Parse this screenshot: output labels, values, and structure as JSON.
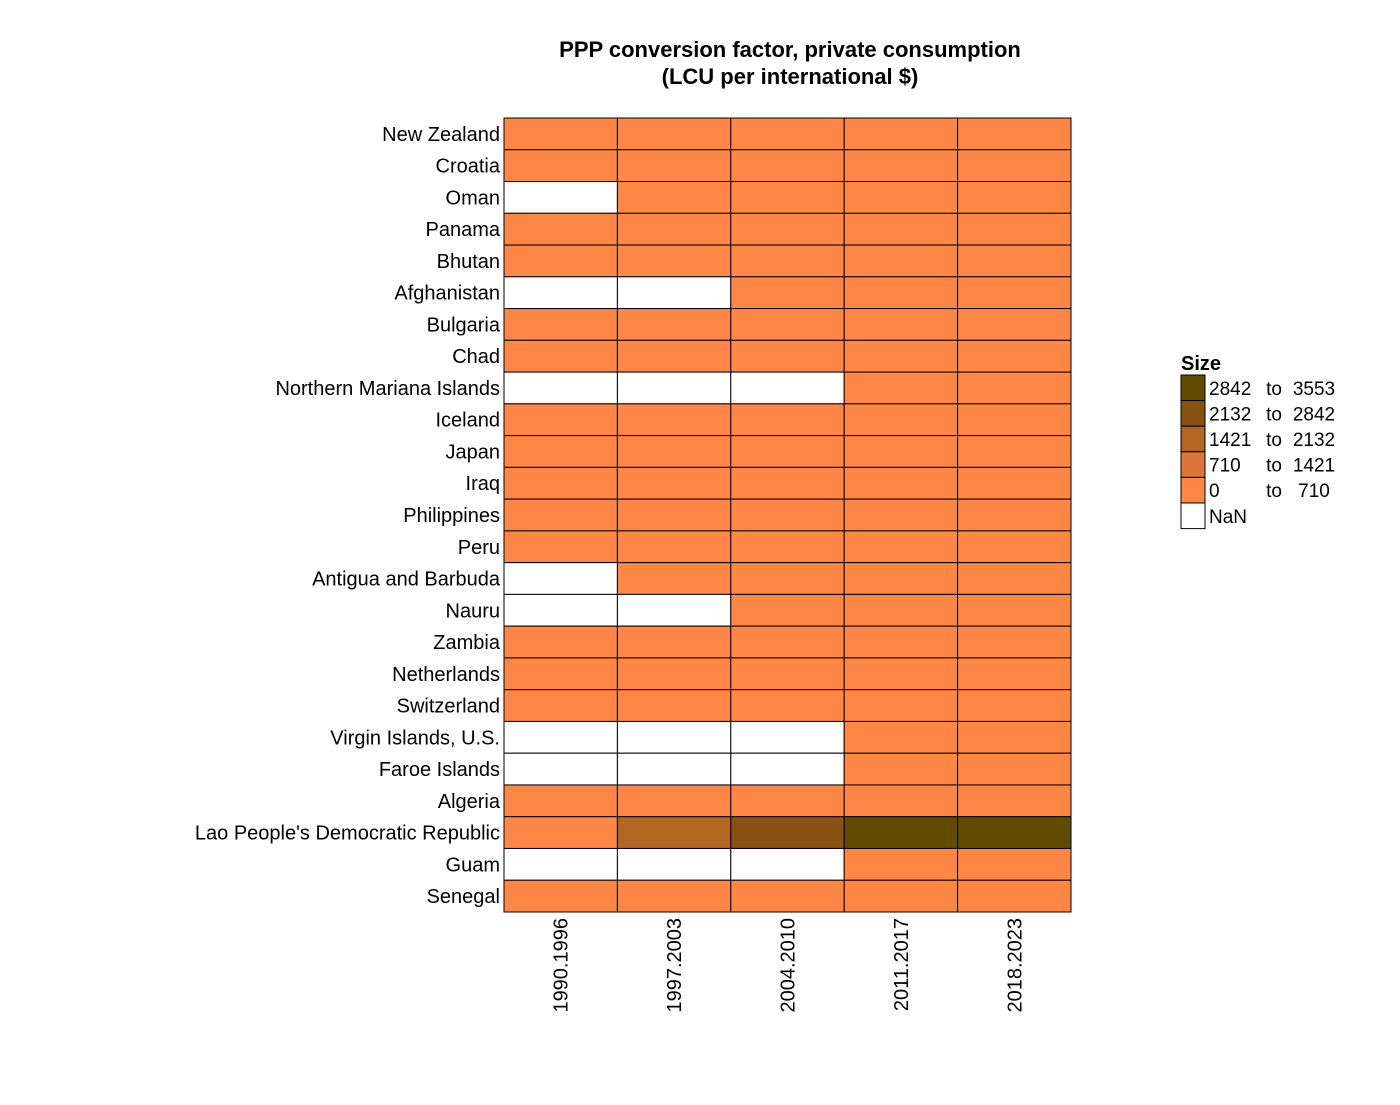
{
  "chart_data": {
    "type": "heatmap",
    "title_line1": "PPP conversion factor, private consumption",
    "title_line2": "(LCU per international $)",
    "xlabel": "",
    "ylabel": "",
    "columns": [
      "1990.1996",
      "1997.2003",
      "2004.2010",
      "2011.2017",
      "2018.2023"
    ],
    "rows": [
      "New Zealand",
      "Croatia",
      "Oman",
      "Panama",
      "Bhutan",
      "Afghanistan",
      "Bulgaria",
      "Chad",
      "Northern Mariana Islands",
      "Iceland",
      "Japan",
      "Iraq",
      "Philippines",
      "Peru",
      "Antigua and Barbuda",
      "Nauru",
      "Zambia",
      "Netherlands",
      "Switzerland",
      "Virgin Islands, U.S.",
      "Faroe Islands",
      "Algeria",
      "Lao People's Democratic Republic",
      "Guam",
      "Senegal"
    ],
    "bins": [
      {
        "label_from": "2842",
        "label_to": "3553",
        "color": "#614B00"
      },
      {
        "label_from": "2132",
        "label_to": "2842",
        "color": "#8A5212"
      },
      {
        "label_from": "1421",
        "label_to": "2132",
        "color": "#B36722"
      },
      {
        "label_from": "710",
        "label_to": "1421",
        "color": "#DB7637"
      },
      {
        "label_from": "0",
        "label_to": "710",
        "color": "#FF8745"
      }
    ],
    "nan_color": "#FFFFFF",
    "legend": {
      "title": "Size",
      "nan_label": "NaN",
      "separator": "to",
      "position": "right"
    },
    "cell_bins": [
      [
        4,
        4,
        4,
        4,
        4
      ],
      [
        4,
        4,
        4,
        4,
        4
      ],
      [
        null,
        4,
        4,
        4,
        4
      ],
      [
        4,
        4,
        4,
        4,
        4
      ],
      [
        4,
        4,
        4,
        4,
        4
      ],
      [
        null,
        null,
        4,
        4,
        4
      ],
      [
        4,
        4,
        4,
        4,
        4
      ],
      [
        4,
        4,
        4,
        4,
        4
      ],
      [
        null,
        null,
        null,
        4,
        4
      ],
      [
        4,
        4,
        4,
        4,
        4
      ],
      [
        4,
        4,
        4,
        4,
        4
      ],
      [
        4,
        4,
        4,
        4,
        4
      ],
      [
        4,
        4,
        4,
        4,
        4
      ],
      [
        4,
        4,
        4,
        4,
        4
      ],
      [
        null,
        4,
        4,
        4,
        4
      ],
      [
        null,
        null,
        4,
        4,
        4
      ],
      [
        4,
        4,
        4,
        4,
        4
      ],
      [
        4,
        4,
        4,
        4,
        4
      ],
      [
        4,
        4,
        4,
        4,
        4
      ],
      [
        null,
        null,
        null,
        4,
        4
      ],
      [
        null,
        null,
        null,
        4,
        4
      ],
      [
        4,
        4,
        4,
        4,
        4
      ],
      [
        4,
        2,
        1,
        0,
        0
      ],
      [
        null,
        null,
        null,
        4,
        4
      ],
      [
        4,
        4,
        4,
        4,
        4
      ]
    ]
  }
}
